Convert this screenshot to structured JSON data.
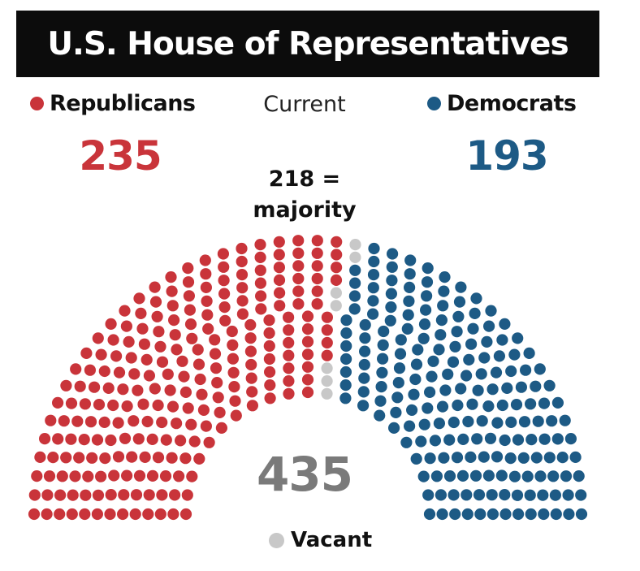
{
  "title": "U.S. House of Representatives",
  "current_label": "Current",
  "majority": {
    "line1": "218 =",
    "line2": "majority"
  },
  "total": "435",
  "parties": {
    "republicans": {
      "label": "Republicans",
      "count": "235",
      "color": "#c9343a"
    },
    "democrats": {
      "label": "Democrats",
      "count": "193",
      "color": "#1d5a85"
    },
    "vacant": {
      "label": "Vacant",
      "color": "#c8c8c8"
    }
  },
  "chart_data": {
    "type": "parliament",
    "title": "U.S. House of Representatives",
    "total_seats": 435,
    "majority_threshold": 218,
    "series": [
      {
        "name": "Republicans",
        "value": 235,
        "color": "#c9343a"
      },
      {
        "name": "Vacant",
        "value": 7,
        "color": "#c8c8c8"
      },
      {
        "name": "Democrats",
        "value": 193,
        "color": "#1d5a85"
      }
    ],
    "rows": 13
  }
}
